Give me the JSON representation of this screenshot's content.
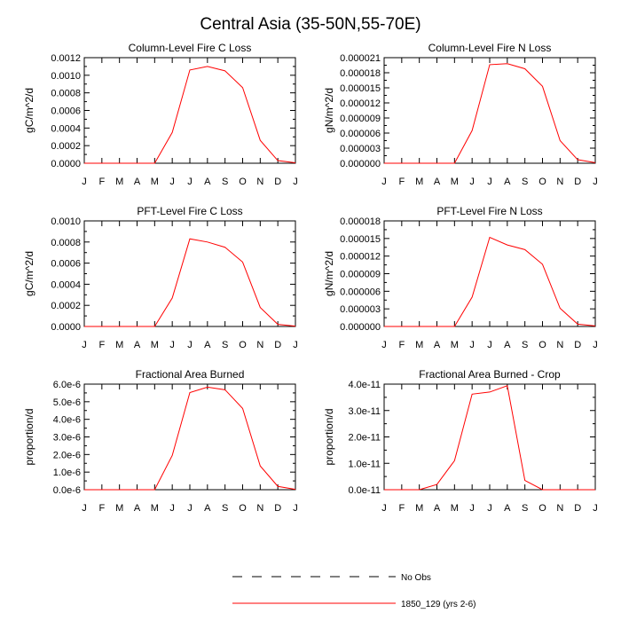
{
  "figure": {
    "title": "Central Asia (35-50N,55-70E)"
  },
  "legend": {
    "entries": [
      {
        "label": "No Obs",
        "style": "dashed",
        "color": "#000000"
      },
      {
        "label": "1850_129 (yrs 2-6)",
        "style": "solid",
        "color": "#ff0000"
      }
    ]
  },
  "colors": {
    "series": "#ff0000",
    "axis": "#000000"
  },
  "chart_data": [
    {
      "type": "line",
      "title": "Column-Level Fire C Loss",
      "ylabel": "gC/m^2/d",
      "xlabel": "",
      "categories": [
        "J",
        "F",
        "M",
        "A",
        "M",
        "J",
        "J",
        "A",
        "S",
        "O",
        "N",
        "D",
        "J"
      ],
      "yticks": [
        "0.0000",
        "0.0002",
        "0.0004",
        "0.0006",
        "0.0008",
        "0.0010",
        "0.0012"
      ],
      "ylim": [
        0,
        0.0012
      ],
      "series": [
        {
          "name": "1850_129 (yrs 2-6)",
          "values": [
            0,
            0,
            0,
            0,
            0,
            0.00035,
            0.00106,
            0.0011,
            0.00105,
            0.00086,
            0.00026,
            3e-05,
            5e-06
          ]
        }
      ]
    },
    {
      "type": "line",
      "title": "Column-Level Fire N Loss",
      "ylabel": "gN/m^2/d",
      "xlabel": "",
      "categories": [
        "J",
        "F",
        "M",
        "A",
        "M",
        "J",
        "J",
        "A",
        "S",
        "O",
        "N",
        "D",
        "J"
      ],
      "yticks": [
        "0.000000",
        "0.000003",
        "0.000006",
        "0.000009",
        "0.000012",
        "0.000015",
        "0.000018",
        "0.000021"
      ],
      "ylim": [
        0,
        2.1e-05
      ],
      "series": [
        {
          "name": "1850_129 (yrs 2-6)",
          "values": [
            0,
            0,
            0,
            0,
            0,
            6.5e-06,
            1.96e-05,
            1.98e-05,
            1.88e-05,
            1.53e-05,
            4.5e-06,
            7e-07,
            1e-07
          ]
        }
      ]
    },
    {
      "type": "line",
      "title": "PFT-Level Fire C Loss",
      "ylabel": "gC/m^2/d",
      "xlabel": "",
      "categories": [
        "J",
        "F",
        "M",
        "A",
        "M",
        "J",
        "J",
        "A",
        "S",
        "O",
        "N",
        "D",
        "J"
      ],
      "yticks": [
        "0.0000",
        "0.0002",
        "0.0004",
        "0.0006",
        "0.0008",
        "0.0010"
      ],
      "ylim": [
        0,
        0.001
      ],
      "series": [
        {
          "name": "1850_129 (yrs 2-6)",
          "values": [
            0,
            0,
            0,
            0,
            0,
            0.00027,
            0.00083,
            0.0008,
            0.00075,
            0.00061,
            0.00018,
            2e-05,
            3e-06
          ]
        }
      ]
    },
    {
      "type": "line",
      "title": "PFT-Level Fire N Loss",
      "ylabel": "gN/m^2/d",
      "xlabel": "",
      "categories": [
        "J",
        "F",
        "M",
        "A",
        "M",
        "J",
        "J",
        "A",
        "S",
        "O",
        "N",
        "D",
        "J"
      ],
      "yticks": [
        "0.000000",
        "0.000003",
        "0.000006",
        "0.000009",
        "0.000012",
        "0.000015",
        "0.000018"
      ],
      "ylim": [
        0,
        1.8e-05
      ],
      "series": [
        {
          "name": "1850_129 (yrs 2-6)",
          "values": [
            0,
            0,
            0,
            0,
            0,
            5e-06,
            1.52e-05,
            1.39e-05,
            1.31e-05,
            1.06e-05,
            3.1e-06,
            4e-07,
            1e-07
          ]
        }
      ]
    },
    {
      "type": "line",
      "title": "Fractional Area Burned",
      "ylabel": "proportion/d",
      "xlabel": "",
      "categories": [
        "J",
        "F",
        "M",
        "A",
        "M",
        "J",
        "J",
        "A",
        "S",
        "O",
        "N",
        "D",
        "J"
      ],
      "yticks": [
        "0.0e-6",
        "1.0e-6",
        "2.0e-6",
        "3.0e-6",
        "4.0e-6",
        "5.0e-6",
        "6.0e-6"
      ],
      "ylim": [
        0,
        6e-06
      ],
      "series": [
        {
          "name": "1850_129 (yrs 2-6)",
          "values": [
            0,
            0,
            0,
            0,
            0,
            1.95e-06,
            5.52e-06,
            5.83e-06,
            5.68e-06,
            4.62e-06,
            1.35e-06,
            1.9e-07,
            2e-08
          ]
        }
      ]
    },
    {
      "type": "line",
      "title": "Fractional Area Burned - Crop",
      "ylabel": "proportion/d",
      "xlabel": "",
      "categories": [
        "J",
        "F",
        "M",
        "A",
        "M",
        "J",
        "J",
        "A",
        "S",
        "O",
        "N",
        "D",
        "J"
      ],
      "yticks": [
        "0.0e-11",
        "1.0e-11",
        "2.0e-11",
        "3.0e-11",
        "4.0e-11"
      ],
      "ylim": [
        0,
        4e-11
      ],
      "series": [
        {
          "name": "1850_129 (yrs 2-6)",
          "values": [
            0,
            0,
            0,
            2e-12,
            1.1e-11,
            3.62e-11,
            3.7e-11,
            3.94e-11,
            3.5e-12,
            0,
            0,
            0,
            0
          ]
        }
      ]
    }
  ]
}
